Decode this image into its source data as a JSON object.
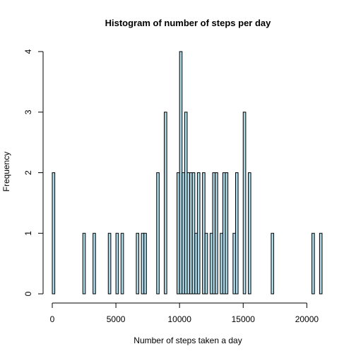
{
  "chart_data": {
    "type": "bar",
    "title": "Histogram of number of steps per day",
    "xlabel": "Number of steps taken a day",
    "ylabel": "Frequency",
    "xlim": [
      0,
      22000
    ],
    "ylim": [
      0,
      4
    ],
    "bin_width": 200,
    "x_ticks": [
      0,
      5000,
      10000,
      15000,
      20000
    ],
    "y_ticks": [
      0,
      1,
      2,
      3,
      4
    ],
    "bar_color": "#add8e6",
    "grid": false,
    "series": [
      {
        "bins": [
          {
            "x": 0,
            "count": 2
          },
          {
            "x": 2400,
            "count": 1
          },
          {
            "x": 3200,
            "count": 1
          },
          {
            "x": 4400,
            "count": 1
          },
          {
            "x": 5000,
            "count": 1
          },
          {
            "x": 5400,
            "count": 1
          },
          {
            "x": 6600,
            "count": 1
          },
          {
            "x": 7000,
            "count": 1
          },
          {
            "x": 7200,
            "count": 1
          },
          {
            "x": 8200,
            "count": 2
          },
          {
            "x": 8800,
            "count": 3
          },
          {
            "x": 9800,
            "count": 2
          },
          {
            "x": 10000,
            "count": 4
          },
          {
            "x": 10200,
            "count": 2
          },
          {
            "x": 10400,
            "count": 3
          },
          {
            "x": 10600,
            "count": 2
          },
          {
            "x": 10800,
            "count": 2
          },
          {
            "x": 11000,
            "count": 2
          },
          {
            "x": 11200,
            "count": 1
          },
          {
            "x": 11400,
            "count": 2
          },
          {
            "x": 11800,
            "count": 2
          },
          {
            "x": 12000,
            "count": 1
          },
          {
            "x": 12400,
            "count": 1
          },
          {
            "x": 12600,
            "count": 2
          },
          {
            "x": 12800,
            "count": 2
          },
          {
            "x": 13200,
            "count": 1
          },
          {
            "x": 13400,
            "count": 2
          },
          {
            "x": 13600,
            "count": 2
          },
          {
            "x": 14200,
            "count": 1
          },
          {
            "x": 14400,
            "count": 2
          },
          {
            "x": 15000,
            "count": 3
          },
          {
            "x": 15400,
            "count": 2
          },
          {
            "x": 17200,
            "count": 1
          },
          {
            "x": 20400,
            "count": 1
          },
          {
            "x": 21000,
            "count": 1
          }
        ]
      }
    ]
  }
}
